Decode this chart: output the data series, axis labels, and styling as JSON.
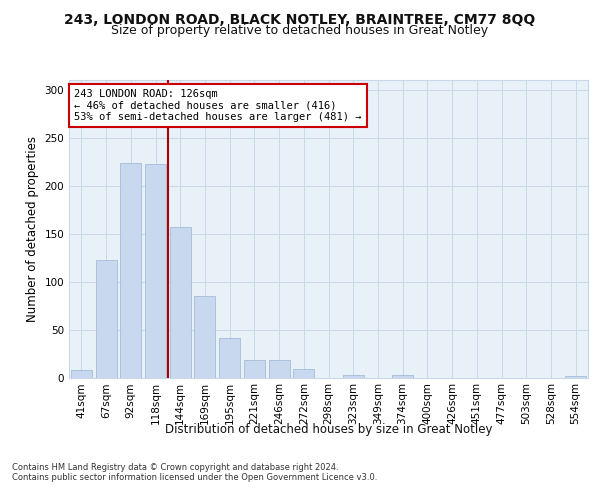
{
  "title1": "243, LONDON ROAD, BLACK NOTLEY, BRAINTREE, CM77 8QQ",
  "title2": "Size of property relative to detached houses in Great Notley",
  "xlabel": "Distribution of detached houses by size in Great Notley",
  "ylabel": "Number of detached properties",
  "bar_labels": [
    "41sqm",
    "67sqm",
    "92sqm",
    "118sqm",
    "144sqm",
    "169sqm",
    "195sqm",
    "221sqm",
    "246sqm",
    "272sqm",
    "298sqm",
    "323sqm",
    "349sqm",
    "374sqm",
    "400sqm",
    "426sqm",
    "451sqm",
    "477sqm",
    "503sqm",
    "528sqm",
    "554sqm"
  ],
  "bar_values": [
    8,
    122,
    224,
    222,
    157,
    85,
    41,
    18,
    18,
    9,
    0,
    3,
    0,
    3,
    0,
    0,
    0,
    0,
    0,
    0,
    2
  ],
  "bar_color": "#c8d9ef",
  "bar_edge_color": "#9ab4d4",
  "vline_x_index": 3,
  "vline_color": "#aa0000",
  "annotation_text": "243 LONDON ROAD: 126sqm\n← 46% of detached houses are smaller (416)\n53% of semi-detached houses are larger (481) →",
  "annotation_box_color": "#ffffff",
  "annotation_box_edge": "#cc0000",
  "grid_color": "#c8d8e8",
  "background_color": "#e8f0f8",
  "ylim": [
    0,
    310
  ],
  "yticks": [
    0,
    50,
    100,
    150,
    200,
    250,
    300
  ],
  "footer1": "Contains HM Land Registry data © Crown copyright and database right 2024.",
  "footer2": "Contains public sector information licensed under the Open Government Licence v3.0.",
  "title1_fontsize": 10,
  "title2_fontsize": 9,
  "tick_fontsize": 7.5,
  "label_fontsize": 8.5,
  "annotation_fontsize": 7.5
}
